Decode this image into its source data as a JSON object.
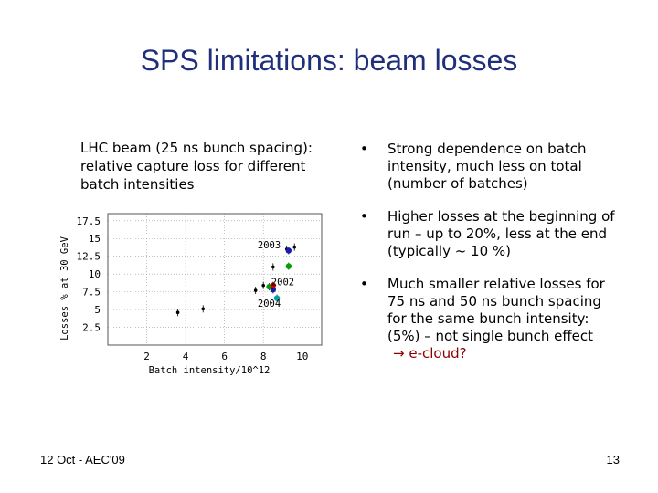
{
  "slide": {
    "title": "SPS limitations: beam losses",
    "caption": "LHC beam (25 ns bunch spacing): relative capture loss for different batch intensities",
    "bullets": [
      "Strong dependence on batch intensity, much less on total (number of batches)",
      "Higher losses at the beginning of run – up to 20%, less at the end (typically ~ 10 %)",
      "Much smaller relative losses for 75 ns and 50 ns bunch spacing for the same bunch intensity:"
    ],
    "bullet3_extra": "(5%) – not single bunch effect",
    "bullet3_cloud": "→ e-cloud?",
    "footer_left": "12 Oct - AEC'09",
    "page_number": "13"
  },
  "chart_data": {
    "type": "scatter",
    "title": "",
    "xlabel": "Batch intensity/10^12",
    "ylabel": "Losses % at 30 GeV",
    "xlim": [
      0,
      11
    ],
    "ylim": [
      0,
      18.5
    ],
    "x_ticks": [
      2,
      4,
      6,
      8,
      10
    ],
    "y_ticks": [
      2.5,
      5,
      7.5,
      10,
      12.5,
      15,
      17.5
    ],
    "grid": true,
    "annotations": [
      {
        "text": "2003",
        "x": 8.3,
        "y": 13.6
      },
      {
        "text": "2002",
        "x": 9.0,
        "y": 8.4
      },
      {
        "text": "2004",
        "x": 8.3,
        "y": 5.4
      }
    ],
    "series": [
      {
        "color": "#000000",
        "points": [
          [
            3.6,
            4.6
          ],
          [
            4.9,
            5.1
          ],
          [
            7.6,
            7.7
          ],
          [
            8.0,
            8.4
          ],
          [
            8.5,
            11.0
          ],
          [
            9.2,
            13.5
          ],
          [
            9.6,
            13.8
          ]
        ]
      },
      {
        "color": "#1a1ab0",
        "points": [
          [
            8.5,
            7.8
          ],
          [
            9.3,
            13.3
          ]
        ]
      },
      {
        "color": "#00a000",
        "points": [
          [
            8.3,
            8.2
          ],
          [
            9.3,
            11.1
          ]
        ]
      },
      {
        "color": "#cc0000",
        "points": [
          [
            8.5,
            8.4
          ]
        ]
      },
      {
        "color": "#00a0a0",
        "points": [
          [
            8.7,
            6.6
          ]
        ]
      }
    ],
    "colors": {
      "title": "#1f2f7a",
      "grid": "#9a9a9a",
      "cloud_text": "#8b0000"
    }
  }
}
